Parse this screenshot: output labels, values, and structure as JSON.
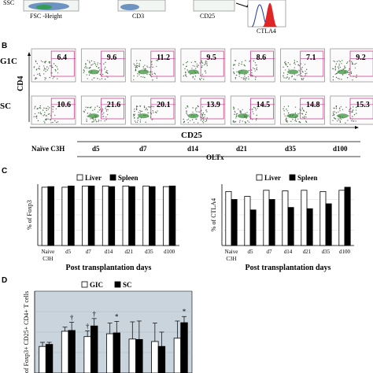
{
  "panel_A": {
    "axis_left": "SSC",
    "xlabel_left": "FSC -Height",
    "xlabel_mid": "CD3",
    "xlabel_right": "CD25",
    "hist_label": "CTLA4"
  },
  "panel_B": {
    "label": "B",
    "row_labels": [
      "G1C",
      "SC"
    ],
    "y_axis": "CD4",
    "x_axis": "CD25",
    "top_values": [
      "6.4",
      "9.6",
      "11.2",
      "9.5",
      "8.6",
      "7.1",
      "9.2"
    ],
    "bottom_values": [
      "10.6",
      "21.6",
      "20.1",
      "13.9",
      "14.5",
      "14.8",
      "15.3"
    ],
    "col_labels": [
      "Naïve C3H",
      "d5",
      "d7",
      "d14",
      "d21",
      "d35",
      "d100"
    ],
    "group_label": "OLTx"
  },
  "chart_data": [
    {
      "type": "bar",
      "panel": "C",
      "ylabel": "% of Foxp3",
      "xlabel": "Post transplantation days",
      "categories": [
        "Naive C3H",
        "d5",
        "d7",
        "d14",
        "d21",
        "d35",
        "d100"
      ],
      "ylim": [
        0,
        100
      ],
      "yticks": [],
      "series": [
        {
          "name": "Liver",
          "color": "#ffffff",
          "values": [
            95,
            95,
            97,
            97,
            97,
            97,
            96
          ]
        },
        {
          "name": "Spleen",
          "color": "#000000",
          "values": [
            96,
            97,
            97,
            96,
            96,
            96,
            97
          ]
        }
      ]
    },
    {
      "type": "bar",
      "panel": "C",
      "ylabel": "% of CTLA4",
      "xlabel": "Post transplantation days",
      "categories": [
        "Naive C3H",
        "d5",
        "d7",
        "d14",
        "d21",
        "d35",
        "d100"
      ],
      "ylim": [
        0,
        100
      ],
      "yticks": [],
      "series": [
        {
          "name": "Liver",
          "color": "#ffffff",
          "values": [
            88,
            80,
            90,
            89,
            90,
            88,
            90
          ]
        },
        {
          "name": "Spleen",
          "color": "#000000",
          "values": [
            75,
            58,
            75,
            62,
            60,
            68,
            95
          ]
        }
      ]
    },
    {
      "type": "bar",
      "panel": "D",
      "ylabel": "of Foxp3+ CD25+ CD4+ T cells",
      "xlabel": "",
      "categories": [
        "",
        "",
        "",
        "",
        "",
        "",
        ""
      ],
      "ylim": [
        0,
        20
      ],
      "yticks": [],
      "background": "#c9d4dc",
      "series": [
        {
          "name": "GIC",
          "color": "#ffffff",
          "values": [
            6.5,
            10.2,
            8.9,
            9.6,
            8.3,
            7.7,
            8.5
          ],
          "errors": [
            1.0,
            1.0,
            1.4,
            2.6,
            4.2,
            4.5,
            4.2
          ]
        },
        {
          "name": "SC",
          "color": "#000000",
          "values": [
            7.0,
            10.4,
            11.5,
            9.8,
            8.2,
            6.5,
            12.3
          ],
          "errors": [
            0.5,
            2.0,
            1.8,
            2.8,
            4.5,
            3.5,
            1.5
          ]
        }
      ],
      "annotations": [
        "†",
        "†",
        "†",
        "*",
        "*"
      ]
    }
  ],
  "panel_labels": {
    "C": "C",
    "D": "D"
  }
}
